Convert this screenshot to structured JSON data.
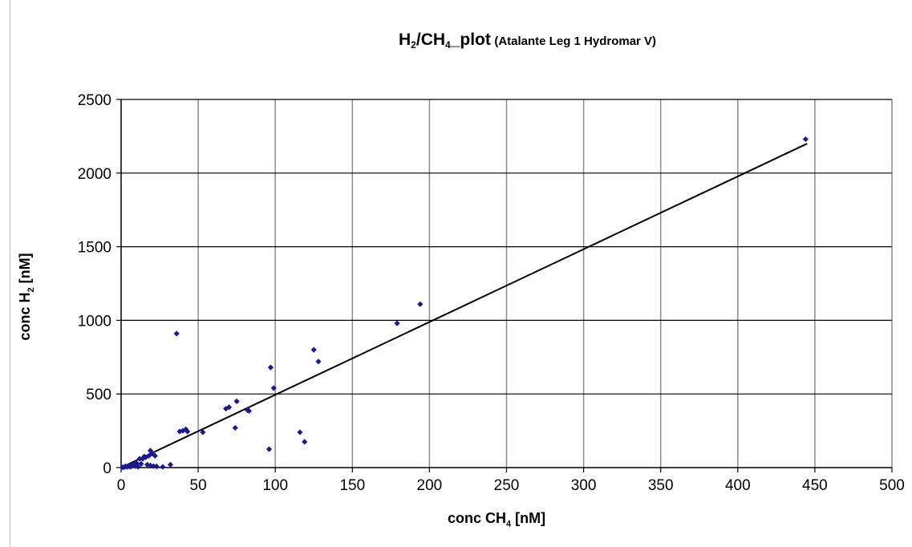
{
  "chart_data": {
    "type": "scatter",
    "title_parts": {
      "h2": "H",
      "h2_sub": "2",
      "slash": "/CH",
      "ch4_sub": "4",
      "suffix": "_plot",
      "subtitle": "(Atalante Leg 1 Hydromar V)"
    },
    "xlabel_parts": {
      "main": "conc CH",
      "sub": "4",
      "unit": " [nM]"
    },
    "ylabel_parts": {
      "main": "conc H",
      "sub": "2",
      "unit": " [nM]"
    },
    "xlim": [
      0,
      500
    ],
    "ylim": [
      0,
      2500
    ],
    "x_ticks": [
      0,
      50,
      100,
      150,
      200,
      250,
      300,
      350,
      400,
      450,
      500
    ],
    "y_ticks": [
      0,
      500,
      1000,
      1500,
      2000,
      2500
    ],
    "grid": {
      "vertical": true,
      "horizontal": true
    },
    "legend": "none",
    "marker_color": "#1a1a8c",
    "trendline": {
      "x": [
        0,
        445
      ],
      "y": [
        0,
        2200
      ],
      "color": "#000000"
    },
    "points": [
      [
        444,
        2230
      ],
      [
        194,
        1110
      ],
      [
        179,
        980
      ],
      [
        125,
        800
      ],
      [
        128,
        720
      ],
      [
        97,
        680
      ],
      [
        99,
        540
      ],
      [
        36,
        910
      ],
      [
        75,
        450
      ],
      [
        70,
        410
      ],
      [
        68,
        400
      ],
      [
        82,
        390
      ],
      [
        83,
        385
      ],
      [
        42,
        260
      ],
      [
        40,
        250
      ],
      [
        43,
        245
      ],
      [
        38,
        245
      ],
      [
        53,
        240
      ],
      [
        116,
        240
      ],
      [
        74,
        270
      ],
      [
        119,
        175
      ],
      [
        96,
        125
      ],
      [
        19,
        115
      ],
      [
        15,
        75
      ],
      [
        14,
        60
      ],
      [
        18,
        80
      ],
      [
        22,
        80
      ],
      [
        20,
        95
      ],
      [
        16,
        70
      ],
      [
        12,
        60
      ],
      [
        10,
        30
      ],
      [
        8,
        20
      ],
      [
        6,
        15
      ],
      [
        9,
        10
      ],
      [
        5,
        10
      ],
      [
        4,
        5
      ],
      [
        2,
        3
      ],
      [
        1,
        2
      ],
      [
        3,
        8
      ],
      [
        7,
        12
      ],
      [
        11,
        5
      ],
      [
        13,
        25
      ],
      [
        17,
        20
      ],
      [
        19,
        15
      ],
      [
        21,
        10
      ],
      [
        23,
        8
      ],
      [
        27,
        5
      ],
      [
        32,
        20
      ],
      [
        6,
        5
      ],
      [
        9,
        25
      ]
    ]
  }
}
